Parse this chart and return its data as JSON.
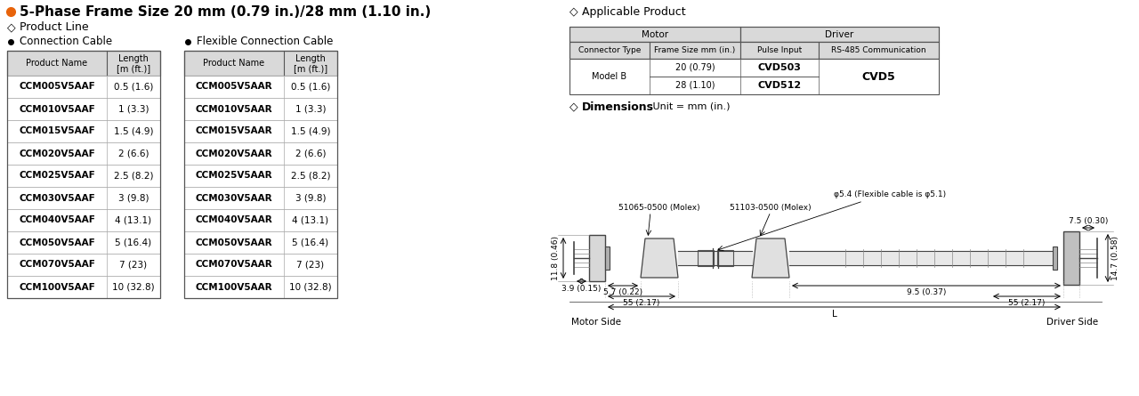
{
  "title": "5-Phase Frame Size 20 mm (0.79 in.)/28 mm (1.10 in.)",
  "bg_color": "#ffffff",
  "section1_label": "Product Line",
  "section2_label": "Connection Cable",
  "section3_label": "Flexible Connection Cable",
  "section4_label": "Applicable Product",
  "section5_label": "Dimensions",
  "dimensions_unit": "Unit = mm (in.)",
  "table1_rows": [
    [
      "CCM005V5AAF",
      "0.5 (1.6)"
    ],
    [
      "CCM010V5AAF",
      "1 (3.3)"
    ],
    [
      "CCM015V5AAF",
      "1.5 (4.9)"
    ],
    [
      "CCM020V5AAF",
      "2 (6.6)"
    ],
    [
      "CCM025V5AAF",
      "2.5 (8.2)"
    ],
    [
      "CCM030V5AAF",
      "3 (9.8)"
    ],
    [
      "CCM040V5AAF",
      "4 (13.1)"
    ],
    [
      "CCM050V5AAF",
      "5 (16.4)"
    ],
    [
      "CCM070V5AAF",
      "7 (23)"
    ],
    [
      "CCM100V5AAF",
      "10 (32.8)"
    ]
  ],
  "table2_rows": [
    [
      "CCM005V5AAR",
      "0.5 (1.6)"
    ],
    [
      "CCM010V5AAR",
      "1 (3.3)"
    ],
    [
      "CCM015V5AAR",
      "1.5 (4.9)"
    ],
    [
      "CCM020V5AAR",
      "2 (6.6)"
    ],
    [
      "CCM025V5AAR",
      "2.5 (8.2)"
    ],
    [
      "CCM030V5AAR",
      "3 (9.8)"
    ],
    [
      "CCM040V5AAR",
      "4 (13.1)"
    ],
    [
      "CCM050V5AAR",
      "5 (16.4)"
    ],
    [
      "CCM070V5AAR",
      "7 (23)"
    ],
    [
      "CCM100V5AAR",
      "10 (32.8)"
    ]
  ],
  "appl_col_headers": [
    "Connector Type",
    "Frame Size mm (in.)",
    "Pulse Input",
    "RS-485 Communication"
  ],
  "header_bg": "#d9d9d9",
  "dim_labels": {
    "phi_top": "φ5.4 (Flexible cable is φ5.1)",
    "molex1": "51065-0500 (Molex)",
    "molex2": "51103-0500 (Molex)",
    "h_motor": "11.8 (0.46)",
    "h_driver": "14.7 (0.58)",
    "d1": "3.9 (0.15)",
    "d2": "5.7 (0.22)",
    "d3": "55 (2.17)",
    "d4": "9.5 (0.37)",
    "d5": "55 (2.17)",
    "d6": "7.5 (0.30)",
    "L": "L",
    "motor_side": "Motor Side",
    "driver_side": "Driver Side"
  },
  "highlight_orange": "#e8630a"
}
